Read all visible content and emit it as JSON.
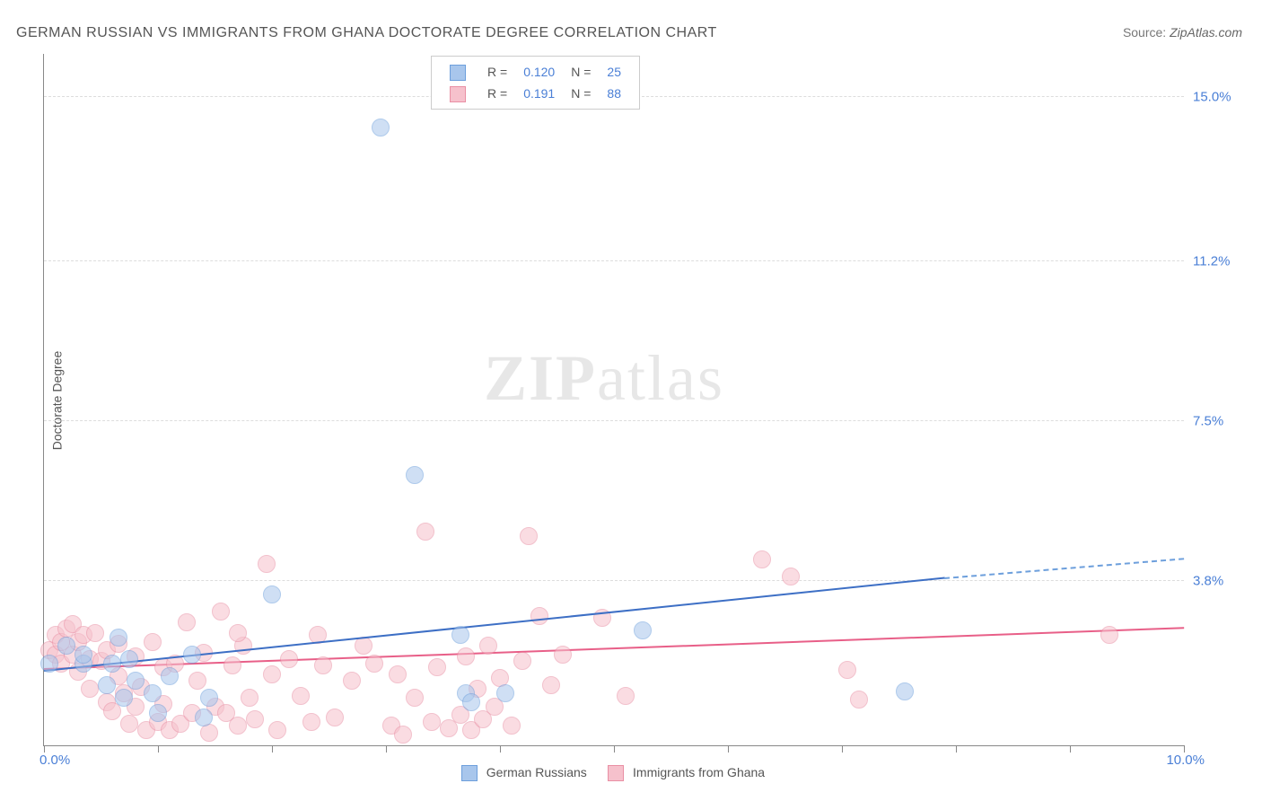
{
  "title": "GERMAN RUSSIAN VS IMMIGRANTS FROM GHANA DOCTORATE DEGREE CORRELATION CHART",
  "source_label": "Source:",
  "source_value": "ZipAtlas.com",
  "y_axis_label": "Doctorate Degree",
  "watermark_zip": "ZIP",
  "watermark_atlas": "atlas",
  "chart": {
    "type": "scatter",
    "xlim": [
      0,
      10
    ],
    "ylim": [
      0,
      16
    ],
    "x_min_label": "0.0%",
    "x_max_label": "10.0%",
    "y_ticks": [
      {
        "v": 3.8,
        "label": "3.8%"
      },
      {
        "v": 7.5,
        "label": "7.5%"
      },
      {
        "v": 11.2,
        "label": "11.2%"
      },
      {
        "v": 15.0,
        "label": "15.0%"
      }
    ],
    "x_tick_positions": [
      0,
      1,
      2,
      3,
      4,
      5,
      6,
      7,
      8,
      9,
      10
    ],
    "background_color": "#ffffff",
    "grid_color": "#dddddd",
    "point_radius": 9,
    "point_opacity": 0.55,
    "series": [
      {
        "name": "German Russians",
        "legend_label": "German Russians",
        "fill_color": "#a8c6ec",
        "stroke_color": "#6d9fdc",
        "trend_color": "#3d6fc5",
        "R": "0.120",
        "N": "25",
        "trend": {
          "x1": 0.0,
          "y1": 1.7,
          "x2": 7.9,
          "y2": 3.85,
          "dash_to_x": 10.0,
          "dash_to_y": 4.3
        },
        "points": [
          [
            0.05,
            1.9
          ],
          [
            0.2,
            2.3
          ],
          [
            0.35,
            1.9
          ],
          [
            0.35,
            2.1
          ],
          [
            0.6,
            1.9
          ],
          [
            0.65,
            2.5
          ],
          [
            0.7,
            1.1
          ],
          [
            0.75,
            2.0
          ],
          [
            0.95,
            1.2
          ],
          [
            1.0,
            0.75
          ],
          [
            1.3,
            2.1
          ],
          [
            1.4,
            0.65
          ],
          [
            1.45,
            1.1
          ],
          [
            2.0,
            3.5
          ],
          [
            2.95,
            14.3
          ],
          [
            3.25,
            6.25
          ],
          [
            3.65,
            2.55
          ],
          [
            3.7,
            1.2
          ],
          [
            3.75,
            1.0
          ],
          [
            4.05,
            1.2
          ],
          [
            5.25,
            2.65
          ],
          [
            7.55,
            1.25
          ],
          [
            0.8,
            1.5
          ],
          [
            0.55,
            1.4
          ],
          [
            1.1,
            1.6
          ]
        ]
      },
      {
        "name": "Immigrants from Ghana",
        "legend_label": "Immigrants from Ghana",
        "fill_color": "#f6c1cc",
        "stroke_color": "#e98fa4",
        "trend_color": "#e85f88",
        "R": "0.191",
        "N": "88",
        "trend": {
          "x1": 0.0,
          "y1": 1.75,
          "x2": 10.0,
          "y2": 2.7
        },
        "points": [
          [
            0.05,
            2.2
          ],
          [
            0.1,
            2.55
          ],
          [
            0.1,
            2.1
          ],
          [
            0.15,
            1.9
          ],
          [
            0.15,
            2.4
          ],
          [
            0.2,
            2.7
          ],
          [
            0.25,
            2.8
          ],
          [
            0.25,
            2.1
          ],
          [
            0.3,
            2.4
          ],
          [
            0.3,
            1.7
          ],
          [
            0.35,
            2.55
          ],
          [
            0.4,
            1.3
          ],
          [
            0.4,
            2.0
          ],
          [
            0.45,
            2.6
          ],
          [
            0.5,
            1.95
          ],
          [
            0.55,
            2.2
          ],
          [
            0.55,
            1.0
          ],
          [
            0.6,
            0.8
          ],
          [
            0.65,
            1.6
          ],
          [
            0.65,
            2.35
          ],
          [
            0.7,
            1.2
          ],
          [
            0.75,
            0.5
          ],
          [
            0.8,
            2.05
          ],
          [
            0.8,
            0.9
          ],
          [
            0.85,
            1.35
          ],
          [
            0.9,
            0.35
          ],
          [
            0.95,
            2.4
          ],
          [
            1.0,
            0.55
          ],
          [
            1.05,
            1.8
          ],
          [
            1.05,
            0.95
          ],
          [
            1.1,
            0.35
          ],
          [
            1.15,
            1.9
          ],
          [
            1.2,
            0.5
          ],
          [
            1.25,
            2.85
          ],
          [
            1.3,
            0.75
          ],
          [
            1.35,
            1.5
          ],
          [
            1.4,
            2.15
          ],
          [
            1.45,
            0.3
          ],
          [
            1.5,
            0.9
          ],
          [
            1.55,
            3.1
          ],
          [
            1.6,
            0.75
          ],
          [
            1.65,
            1.85
          ],
          [
            1.7,
            0.45
          ],
          [
            1.75,
            2.3
          ],
          [
            1.8,
            1.1
          ],
          [
            1.85,
            0.6
          ],
          [
            1.95,
            4.2
          ],
          [
            2.0,
            1.65
          ],
          [
            2.05,
            0.35
          ],
          [
            2.15,
            2.0
          ],
          [
            2.25,
            1.15
          ],
          [
            2.35,
            0.55
          ],
          [
            2.45,
            1.85
          ],
          [
            2.55,
            0.65
          ],
          [
            2.7,
            1.5
          ],
          [
            2.8,
            2.3
          ],
          [
            2.9,
            1.9
          ],
          [
            3.05,
            0.45
          ],
          [
            3.1,
            1.65
          ],
          [
            3.15,
            0.25
          ],
          [
            3.25,
            1.1
          ],
          [
            3.35,
            4.95
          ],
          [
            3.4,
            0.55
          ],
          [
            3.45,
            1.8
          ],
          [
            3.55,
            0.4
          ],
          [
            3.65,
            0.7
          ],
          [
            3.7,
            2.05
          ],
          [
            3.75,
            0.35
          ],
          [
            3.8,
            1.3
          ],
          [
            3.85,
            0.6
          ],
          [
            3.9,
            2.3
          ],
          [
            3.95,
            0.9
          ],
          [
            4.0,
            1.55
          ],
          [
            4.1,
            0.45
          ],
          [
            4.2,
            1.95
          ],
          [
            4.25,
            4.85
          ],
          [
            4.35,
            3.0
          ],
          [
            4.45,
            1.4
          ],
          [
            4.55,
            2.1
          ],
          [
            4.9,
            2.95
          ],
          [
            5.1,
            1.15
          ],
          [
            6.3,
            4.3
          ],
          [
            6.55,
            3.9
          ],
          [
            7.05,
            1.75
          ],
          [
            7.15,
            1.05
          ],
          [
            9.35,
            2.55
          ],
          [
            1.7,
            2.6
          ],
          [
            2.4,
            2.55
          ]
        ]
      }
    ]
  }
}
